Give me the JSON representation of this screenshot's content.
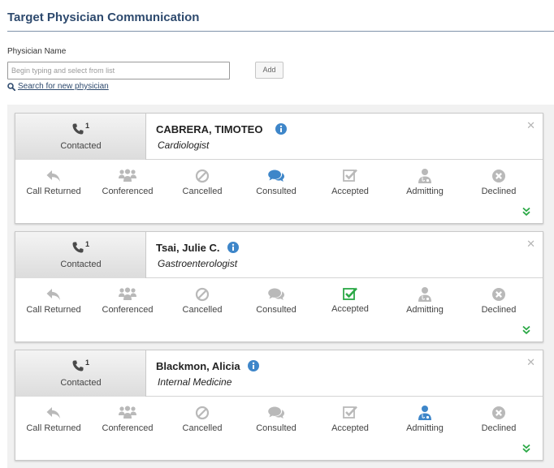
{
  "header": {
    "title": "Target Physician Communication"
  },
  "search": {
    "label": "Physician Name",
    "placeholder": "Begin typing and select from list",
    "add_label": "Add",
    "new_physician_link": "Search for new physician"
  },
  "colors": {
    "title": "#2e4a6e",
    "active_blue": "#3e86c9",
    "accepted_green": "#2aa845",
    "inactive_gray": "#b9b9b9",
    "expand_green": "#2aa845"
  },
  "physicians": [
    {
      "name": "CABRERA, TIMOTEO",
      "specialty": "Cardiologist",
      "contact_count": "1",
      "contact_label": "Contacted",
      "active_action": "consulted",
      "actions": {
        "call_returned": "Call Returned",
        "conferenced": "Conferenced",
        "cancelled": "Cancelled",
        "consulted": "Consulted",
        "accepted": "Accepted",
        "admitting": "Admitting",
        "declined": "Declined"
      }
    },
    {
      "name": "Tsai, Julie C.",
      "specialty": "Gastroenterologist",
      "contact_count": "1",
      "contact_label": "Contacted",
      "active_action": "accepted",
      "actions": {
        "call_returned": "Call Returned",
        "conferenced": "Conferenced",
        "cancelled": "Cancelled",
        "consulted": "Consulted",
        "accepted": "Accepted",
        "admitting": "Admitting",
        "declined": "Declined"
      }
    },
    {
      "name": "Blackmon, Alicia",
      "specialty": "Internal Medicine",
      "contact_count": "1",
      "contact_label": "Contacted",
      "active_action": "admitting",
      "actions": {
        "call_returned": "Call Returned",
        "conferenced": "Conferenced",
        "cancelled": "Cancelled",
        "consulted": "Consulted",
        "accepted": "Accepted",
        "admitting": "Admitting",
        "declined": "Declined"
      }
    }
  ]
}
